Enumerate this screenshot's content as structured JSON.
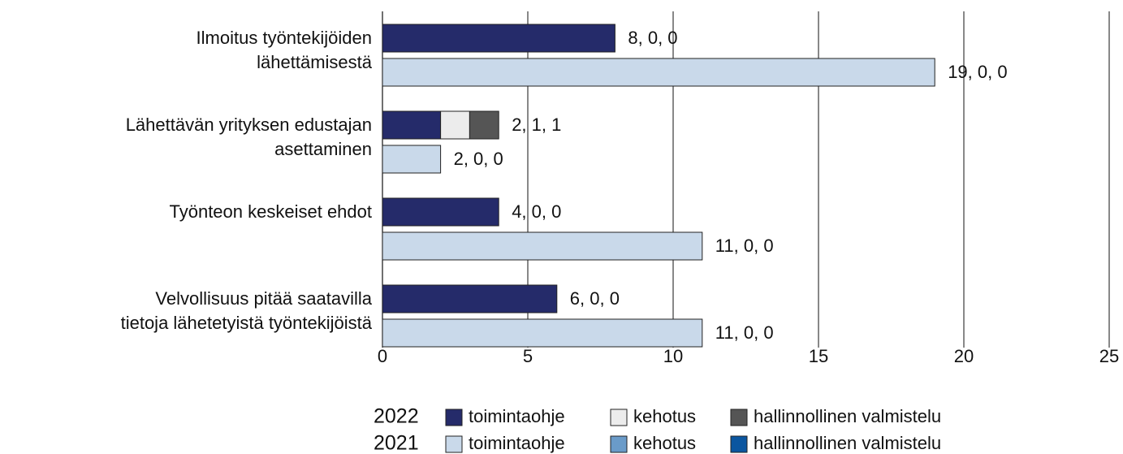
{
  "chart_data": {
    "type": "bar",
    "orientation": "horizontal",
    "stacked": true,
    "categories": [
      [
        "Ilmoitus työntekijöiden",
        "lähettämisestä"
      ],
      [
        "Lähettävän yrityksen edustajan",
        "asettaminen"
      ],
      [
        "Työnteon keskeiset ehdot"
      ],
      [
        "Velvollisuus pitää saatavilla",
        "tietoja lähetetyistä työntekijöistä"
      ]
    ],
    "groups": [
      {
        "name": "2022",
        "value_labels": [
          "8, 0, 0",
          "2, 1, 1",
          "4, 0, 0",
          "6, 0, 0"
        ],
        "series": [
          {
            "name": "toimintaohje",
            "color": "#252b6a",
            "values": [
              8,
              2,
              4,
              6
            ]
          },
          {
            "name": "kehotus",
            "color": "#ececec",
            "values": [
              0,
              1,
              0,
              0
            ]
          },
          {
            "name": "hallinnollinen valmistelu",
            "color": "#555555",
            "values": [
              0,
              1,
              0,
              0
            ]
          }
        ]
      },
      {
        "name": "2021",
        "value_labels": [
          "19, 0, 0",
          "2, 0, 0",
          "11, 0, 0",
          "11, 0, 0"
        ],
        "series": [
          {
            "name": "toimintaohje",
            "color": "#c9d9ea",
            "values": [
              19,
              2,
              11,
              11
            ]
          },
          {
            "name": "kehotus",
            "color": "#6a9bc9",
            "values": [
              0,
              0,
              0,
              0
            ]
          },
          {
            "name": "hallinnollinen valmistelu",
            "color": "#0b56a0",
            "values": [
              0,
              0,
              0,
              0
            ]
          }
        ]
      }
    ],
    "xlim": [
      0,
      25
    ],
    "xticks": [
      0,
      5,
      10,
      15,
      20,
      25
    ],
    "grid": true
  }
}
